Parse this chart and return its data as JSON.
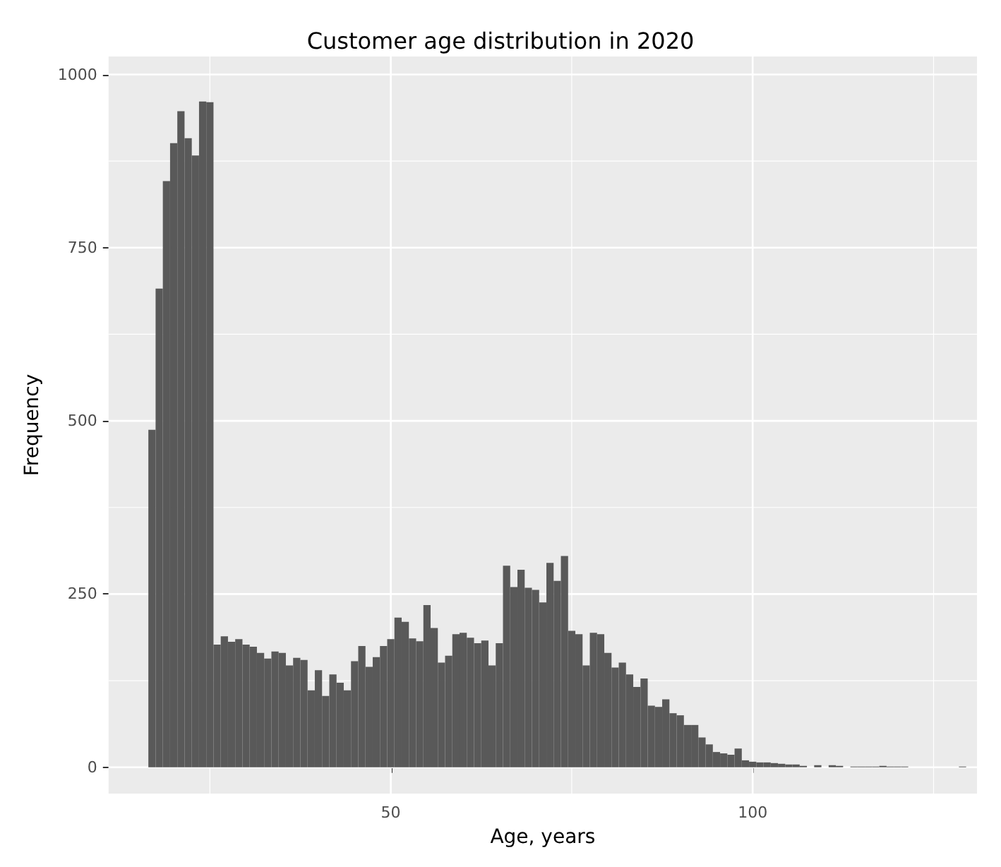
{
  "chart_data": {
    "type": "histogram",
    "title": "Customer age distribution in 2020",
    "xlabel": "Age, years",
    "ylabel": "Frequency",
    "color": "#595959",
    "bins": [
      16.5,
      17.5,
      18.5,
      19.5,
      20.5,
      21.5,
      22.5,
      23.5,
      24.5,
      25.5,
      26.5,
      27.5,
      28.5,
      29.5,
      30.5,
      31.5,
      32.5,
      33.5,
      34.5,
      35.5,
      36.5,
      37.5,
      38.5,
      39.5,
      40.5,
      41.5,
      42.5,
      43.5,
      44.5,
      45.5,
      46.5,
      47.5,
      48.5,
      49.5,
      50.5,
      51.5,
      52.5,
      53.5,
      54.5,
      55.5,
      56.5,
      57.5,
      58.5,
      59.5,
      60.5,
      61.5,
      62.5,
      63.5,
      64.5,
      65.5,
      66.5,
      67.5,
      68.5,
      69.5,
      70.5,
      71.5,
      72.5,
      73.5,
      74.5,
      75.5,
      76.5,
      77.5,
      78.5,
      79.5,
      80.5,
      81.5,
      82.5,
      83.5,
      84.5,
      85.5,
      86.5,
      87.5,
      88.5,
      89.5,
      90.5,
      91.5,
      92.5,
      93.5,
      94.5,
      95.5,
      96.5,
      97.5,
      98.5,
      99.5,
      100.5,
      101.5,
      102.5,
      103.5,
      104.5,
      105.5,
      106.5,
      107.5,
      108.5,
      109.5,
      110.5,
      111.5,
      112.5,
      113.5,
      114.5,
      115.5,
      116.5,
      117.5,
      118.5,
      119.5,
      120.5,
      121.5,
      122.5,
      123.5,
      124.5,
      125.5,
      126.5,
      127.5,
      128.5,
      129.5
    ],
    "values": [
      487,
      691,
      846,
      901,
      947,
      908,
      883,
      961,
      960,
      177,
      189,
      181,
      185,
      177,
      174,
      165,
      157,
      167,
      165,
      147,
      158,
      155,
      111,
      140,
      103,
      134,
      122,
      111,
      153,
      175,
      145,
      159,
      175,
      185,
      216,
      210,
      186,
      182,
      234,
      201,
      151,
      161,
      192,
      194,
      187,
      179,
      183,
      147,
      179,
      291,
      260,
      285,
      259,
      256,
      238,
      295,
      269,
      305,
      197,
      192,
      147,
      194,
      192,
      165,
      144,
      151,
      134,
      116,
      128,
      89,
      87,
      98,
      78,
      75,
      61,
      61,
      43,
      33,
      22,
      20,
      18,
      27,
      10,
      8,
      7,
      7,
      6,
      5,
      4,
      4,
      2,
      0,
      3,
      0,
      3,
      2,
      0,
      1,
      1,
      1,
      1,
      2,
      1,
      1,
      1,
      0,
      0,
      0,
      0,
      0,
      0,
      0,
      1
    ],
    "xlim": [
      11,
      131
    ],
    "xticks": [
      {
        "value": 25,
        "label": null
      },
      50,
      {
        "value": 75,
        "label": null
      },
      100,
      {
        "value": 125,
        "label": null
      }
    ],
    "ylim": [
      -38,
      1026
    ],
    "yticks": [
      0,
      {
        "value": 125,
        "label": null
      },
      250,
      {
        "value": 375,
        "label": null
      },
      500,
      {
        "value": 625,
        "label": null
      },
      750,
      {
        "value": 875,
        "label": null
      },
      1000
    ],
    "grid": true
  }
}
